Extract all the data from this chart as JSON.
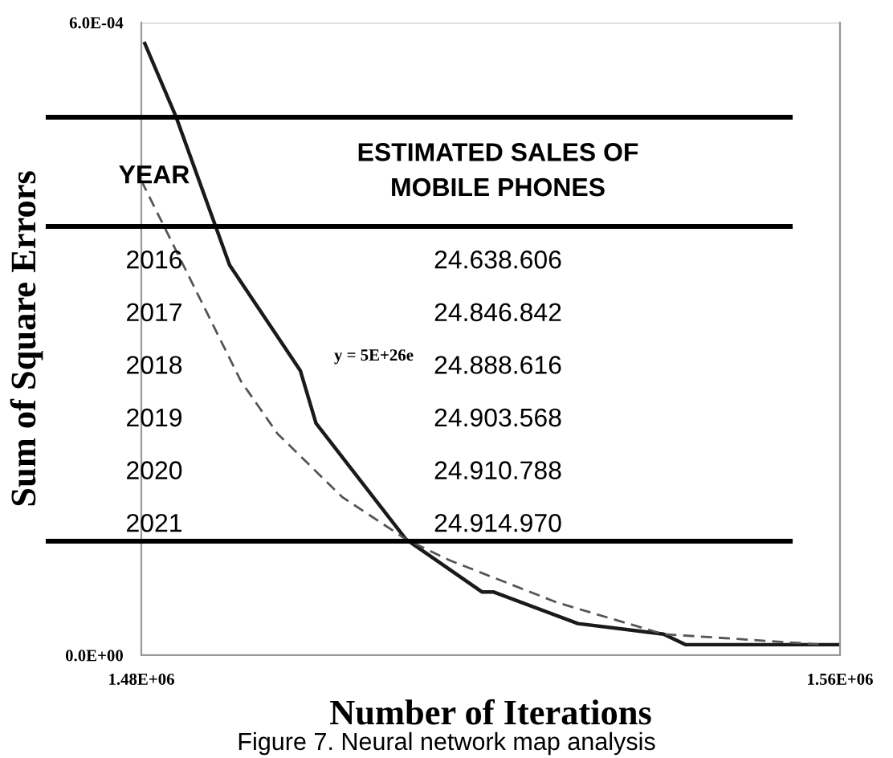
{
  "chart_data": {
    "type": "line",
    "xlabel": "Number of Iterations",
    "ylabel": "Sum of Square Errors",
    "series": [
      {
        "color": "#1a1a1a",
        "line_style": "solid",
        "x": [
          1480400,
          1484000,
          1490100,
          1498200,
          1500000,
          1510300,
          1519000,
          1520300,
          1530000,
          1539800,
          1542300,
          1560000
        ],
        "values": [
          0.00058,
          0.00051,
          0.00037,
          0.00027,
          0.00022,
          0.00011,
          6e-05,
          6e-05,
          3e-05,
          2e-05,
          1e-05,
          1e-05
        ]
      },
      {
        "color": "#555555",
        "line_style": "dashed",
        "x": [
          1480000,
          1491400,
          1495600,
          1503000,
          1510300,
          1515300,
          1527600,
          1539800,
          1558200
        ],
        "values": [
          0.00045,
          0.00026,
          0.00021,
          0.00015,
          0.00011,
          9e-05,
          5e-05,
          2e-05,
          1e-05
        ]
      }
    ],
    "xlim": [
      1480000,
      1560000
    ],
    "xticks": [
      {
        "value": 1480000,
        "label": "1.48E+06"
      },
      {
        "value": 1560000,
        "label": "1.56E+06"
      }
    ],
    "ylim": [
      0,
      0.0006
    ],
    "yticks": [
      {
        "value": 0,
        "label": "0.0E+00"
      },
      {
        "value": 0.0006,
        "label": "6.0E-04"
      }
    ],
    "grid": "y",
    "marker": "none",
    "annotations": [
      "YEAR",
      "ESTIMATED SALES OF\nMOBILE PHONES",
      "2016",
      "24.638.606",
      "2017",
      "24.846.842",
      "2018",
      "24.888.616",
      "2019",
      "24.903.568",
      "2020",
      "24.910.788",
      "2021",
      "24.914.970",
      "y = 5E+26e",
      "Figure 7. Neural network map analysis"
    ]
  }
}
